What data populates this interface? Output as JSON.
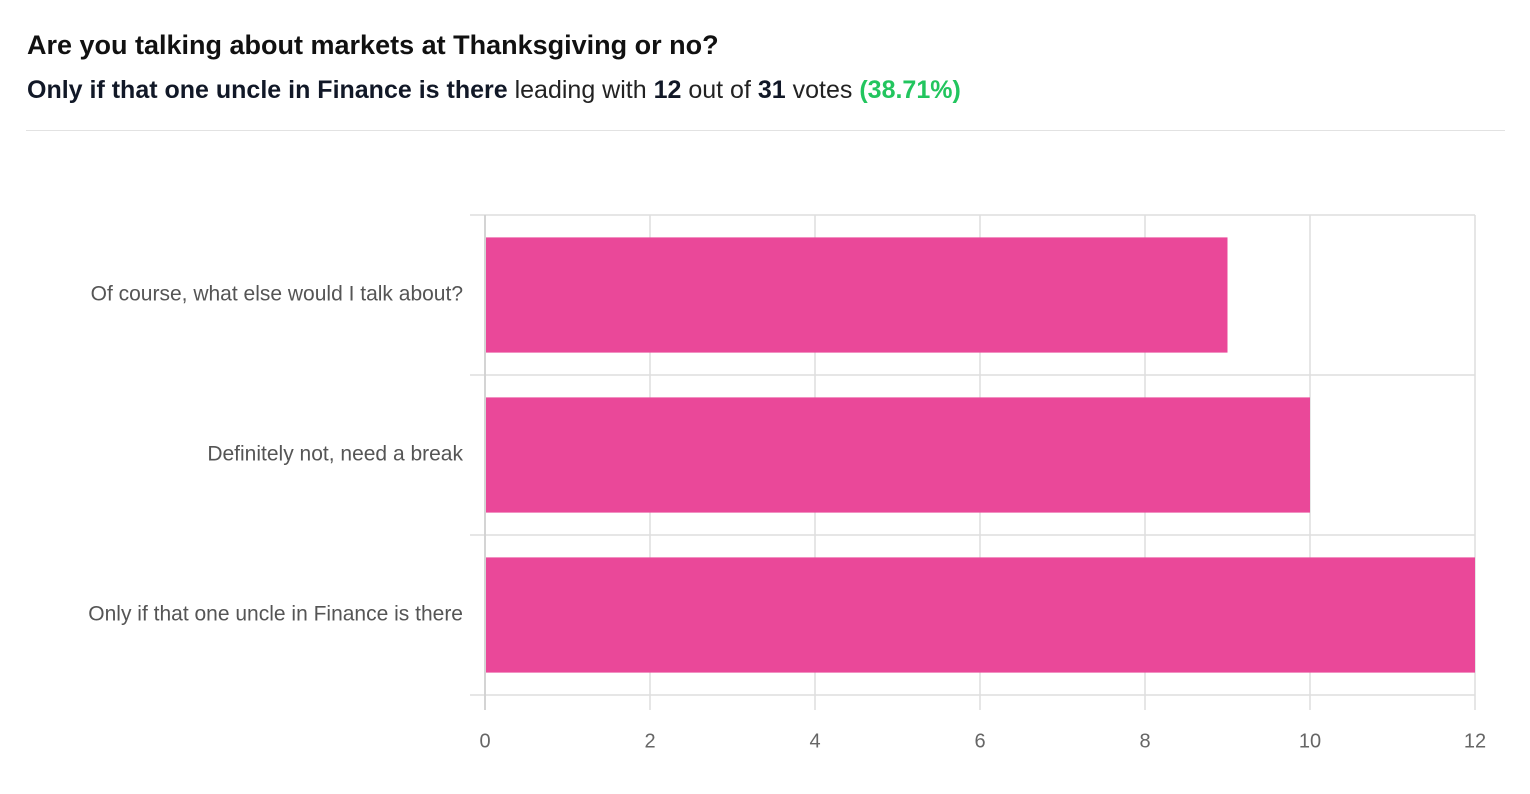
{
  "chart_data": {
    "type": "bar",
    "orientation": "horizontal",
    "title": "Are you talking about markets at Thanksgiving or no?",
    "subtitle": {
      "leader": "Only if that one uncle in Finance is there",
      "leading_with": "leading with",
      "leader_votes": 12,
      "out_of": "out of",
      "total_votes": 31,
      "votes": "votes",
      "share": "(38.71%)"
    },
    "categories": [
      "Of course, what else would I talk about?",
      "Definitely not, need a break",
      "Only if that one uncle in Finance is there"
    ],
    "values": [
      9,
      10,
      12
    ],
    "color": "#ea4899",
    "xlim": [
      0,
      12
    ],
    "xticks": [
      0,
      2,
      4,
      6,
      8,
      10,
      12
    ],
    "grid": true
  }
}
